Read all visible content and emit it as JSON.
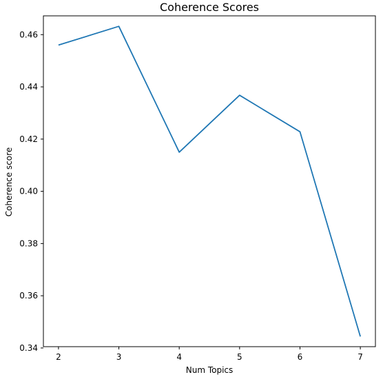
{
  "chart_data": {
    "type": "line",
    "title": "Coherence Scores",
    "xlabel": "Num Topics",
    "ylabel": "Coherence score",
    "x": [
      2,
      3,
      4,
      5,
      6,
      7
    ],
    "series": [
      {
        "values": [
          0.456,
          0.4632,
          0.415,
          0.4368,
          0.4228,
          0.3444
        ],
        "color": "#1f77b4"
      }
    ],
    "xticks": [
      2,
      3,
      4,
      5,
      6,
      7
    ],
    "xtick_labels": [
      "2",
      "3",
      "4",
      "5",
      "6",
      "7"
    ],
    "yticks": [
      0.34,
      0.36,
      0.38,
      0.4,
      0.42,
      0.44,
      0.46
    ],
    "ytick_labels": [
      "0.34",
      "0.36",
      "0.38",
      "0.40",
      "0.42",
      "0.44",
      "0.46"
    ],
    "xlim": [
      1.75,
      7.25
    ],
    "ylim": [
      0.3405,
      0.4672
    ],
    "grid": false,
    "legend": false
  }
}
